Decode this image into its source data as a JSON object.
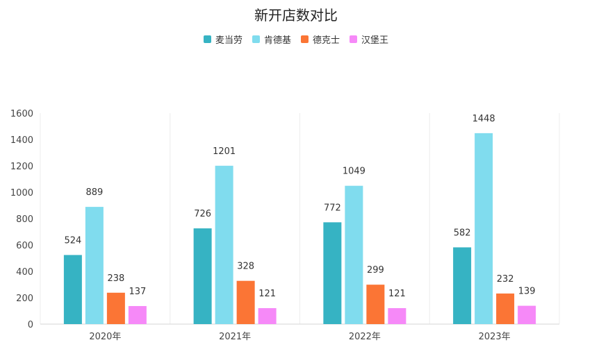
{
  "chart_data": {
    "type": "bar",
    "title": "新开店数对比",
    "categories": [
      "2020年",
      "2021年",
      "2022年",
      "2023年"
    ],
    "series": [
      {
        "name": "麦当劳",
        "values": [
          524,
          726,
          772,
          582
        ],
        "color": "#36b3c3"
      },
      {
        "name": "肯德基",
        "values": [
          889,
          1201,
          1049,
          1448
        ],
        "color": "#80dcee"
      },
      {
        "name": "德克士",
        "values": [
          238,
          328,
          299,
          232
        ],
        "color": "#fb7535"
      },
      {
        "name": "汉堡王",
        "values": [
          137,
          121,
          121,
          139
        ],
        "color": "#f689f8"
      }
    ],
    "yticks": [
      "0",
      "200",
      "400",
      "600",
      "800",
      "1000",
      "1200",
      "1400",
      "1600"
    ],
    "ylim": [
      0,
      1600
    ],
    "grid": "vertical category separators",
    "legend_position": "top-center"
  }
}
